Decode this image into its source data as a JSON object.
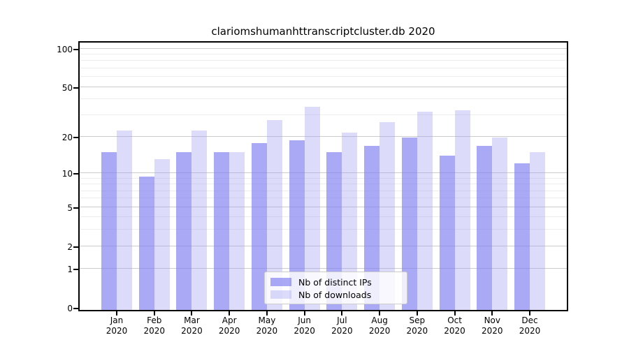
{
  "chart_data": {
    "type": "bar",
    "title": "clariomshumanhttranscriptcluster.db 2020",
    "categories": [
      "Jan",
      "Feb",
      "Mar",
      "Apr",
      "May",
      "Jun",
      "Jul",
      "Aug",
      "Sep",
      "Oct",
      "Nov",
      "Dec"
    ],
    "year": "2020",
    "series": [
      {
        "name": "Nb of distinct IPs",
        "color": "#7c7cf0a8",
        "values": [
          16,
          10,
          16,
          16,
          19,
          20,
          16,
          18,
          21,
          15,
          18,
          13
        ]
      },
      {
        "name": "Nb of downloads",
        "color": "#9e9ef25c",
        "values": [
          24,
          14,
          24,
          16,
          29,
          37,
          23,
          28,
          34,
          35,
          21,
          16
        ]
      }
    ],
    "yscale": "log1p",
    "yticks": [
      100,
      50,
      20,
      10,
      5,
      2,
      1,
      0
    ],
    "minor_gridlines": [
      90,
      80,
      70,
      60,
      40,
      30,
      9,
      8,
      7,
      6,
      4,
      3
    ],
    "ylim": [
      0,
      110
    ],
    "xlabel": "",
    "ylabel": "",
    "grid": true,
    "legend_position": "lower center",
    "colors": {
      "major_grid": "#cccccc",
      "minor_grid": "#ededed",
      "axis": "#000000",
      "background": "#ffffff"
    }
  }
}
